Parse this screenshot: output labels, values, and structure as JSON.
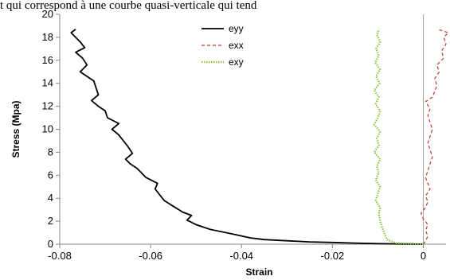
{
  "header_text": "t qui correspond à une courbe quasi-verticale qui tend",
  "chart_data": {
    "type": "line",
    "title": "",
    "xlabel": "Strain",
    "ylabel": "Stress (Mpa)",
    "xlim": [
      -0.08,
      0.005
    ],
    "ylim": [
      0,
      20
    ],
    "xticks": [
      -0.08,
      -0.06,
      -0.04,
      -0.02,
      0
    ],
    "xtick_labels": [
      "-0.08",
      "-0.06",
      "-0.04",
      "-0.02",
      "0"
    ],
    "yticks": [
      0,
      2,
      4,
      6,
      8,
      10,
      12,
      14,
      16,
      18,
      20
    ],
    "ytick_labels": [
      "0",
      "2",
      "4",
      "6",
      "8",
      "10",
      "12",
      "14",
      "16",
      "18",
      "20"
    ],
    "grid": false,
    "legend_position": "top-center",
    "series": [
      {
        "name": "eyy",
        "color": "#000000",
        "dash": "solid",
        "points": [
          [
            0.0,
            0.0
          ],
          [
            -0.005,
            0.02
          ],
          [
            -0.01,
            0.05
          ],
          [
            -0.015,
            0.1
          ],
          [
            -0.02,
            0.15
          ],
          [
            -0.025,
            0.2
          ],
          [
            -0.03,
            0.3
          ],
          [
            -0.035,
            0.4
          ],
          [
            -0.038,
            0.55
          ],
          [
            -0.041,
            0.8
          ],
          [
            -0.044,
            1.05
          ],
          [
            -0.047,
            1.3
          ],
          [
            -0.05,
            1.7
          ],
          [
            -0.052,
            2.1
          ],
          [
            -0.051,
            2.5
          ],
          [
            -0.053,
            2.8
          ],
          [
            -0.055,
            3.3
          ],
          [
            -0.057,
            3.8
          ],
          [
            -0.058,
            4.3
          ],
          [
            -0.059,
            4.8
          ],
          [
            -0.0585,
            5.3
          ],
          [
            -0.061,
            5.8
          ],
          [
            -0.062,
            6.2
          ],
          [
            -0.063,
            6.6
          ],
          [
            -0.0645,
            7.0
          ],
          [
            -0.0655,
            7.4
          ],
          [
            -0.064,
            7.9
          ],
          [
            -0.065,
            8.5
          ],
          [
            -0.066,
            9.0
          ],
          [
            -0.067,
            9.5
          ],
          [
            -0.0685,
            10.0
          ],
          [
            -0.067,
            10.5
          ],
          [
            -0.0695,
            11.0
          ],
          [
            -0.07,
            11.6
          ],
          [
            -0.0715,
            12.0
          ],
          [
            -0.073,
            12.5
          ],
          [
            -0.0715,
            13.0
          ],
          [
            -0.072,
            13.6
          ],
          [
            -0.0725,
            14.2
          ],
          [
            -0.074,
            14.6
          ],
          [
            -0.0755,
            15.0
          ],
          [
            -0.074,
            15.6
          ],
          [
            -0.075,
            16.2
          ],
          [
            -0.0765,
            16.7
          ],
          [
            -0.0745,
            17.1
          ],
          [
            -0.0755,
            17.6
          ],
          [
            -0.0765,
            18.0
          ],
          [
            -0.0775,
            18.4
          ],
          [
            -0.0765,
            18.7
          ]
        ]
      },
      {
        "name": "exx",
        "color": "#c0392b",
        "dash": "dashed",
        "points": [
          [
            0.0,
            0.0
          ],
          [
            0.0005,
            0.3
          ],
          [
            0.001,
            0.7
          ],
          [
            0.0005,
            1.2
          ],
          [
            0.001,
            1.7
          ],
          [
            0.0,
            2.2
          ],
          [
            -0.0005,
            2.7
          ],
          [
            0.0005,
            3.2
          ],
          [
            0.001,
            3.7
          ],
          [
            0.0005,
            4.2
          ],
          [
            0.0015,
            4.8
          ],
          [
            0.001,
            5.3
          ],
          [
            0.0005,
            5.8
          ],
          [
            0.001,
            6.4
          ],
          [
            0.0015,
            7.0
          ],
          [
            0.002,
            7.6
          ],
          [
            0.0015,
            8.2
          ],
          [
            0.001,
            8.8
          ],
          [
            0.0015,
            9.4
          ],
          [
            0.002,
            10.0
          ],
          [
            0.0015,
            10.6
          ],
          [
            0.001,
            11.2
          ],
          [
            0.0015,
            11.8
          ],
          [
            0.0005,
            12.4
          ],
          [
            0.002,
            12.8
          ],
          [
            0.0025,
            13.3
          ],
          [
            0.003,
            13.8
          ],
          [
            0.0025,
            14.4
          ],
          [
            0.0035,
            15.0
          ],
          [
            0.003,
            15.6
          ],
          [
            0.0045,
            16.2
          ],
          [
            0.004,
            16.8
          ],
          [
            0.005,
            17.4
          ],
          [
            0.0045,
            18.0
          ],
          [
            0.0055,
            18.4
          ],
          [
            0.004,
            18.6
          ],
          [
            0.003,
            18.7
          ]
        ]
      },
      {
        "name": "exy",
        "color": "#8cc63f",
        "dash": "dotted",
        "points": [
          [
            0.0,
            0.0
          ],
          [
            -0.003,
            0.05
          ],
          [
            -0.006,
            0.1
          ],
          [
            -0.008,
            0.4
          ],
          [
            -0.0085,
            0.9
          ],
          [
            -0.009,
            1.4
          ],
          [
            -0.0095,
            2.0
          ],
          [
            -0.0098,
            2.6
          ],
          [
            -0.0095,
            3.2
          ],
          [
            -0.0105,
            3.8
          ],
          [
            -0.01,
            4.4
          ],
          [
            -0.0095,
            5.0
          ],
          [
            -0.0105,
            5.6
          ],
          [
            -0.0098,
            6.2
          ],
          [
            -0.0102,
            6.8
          ],
          [
            -0.0095,
            7.4
          ],
          [
            -0.0108,
            8.0
          ],
          [
            -0.0098,
            8.6
          ],
          [
            -0.0102,
            9.2
          ],
          [
            -0.0095,
            9.8
          ],
          [
            -0.0108,
            10.4
          ],
          [
            -0.01,
            11.0
          ],
          [
            -0.0095,
            11.6
          ],
          [
            -0.0105,
            12.2
          ],
          [
            -0.0098,
            12.8
          ],
          [
            -0.0108,
            13.4
          ],
          [
            -0.0096,
            14.0
          ],
          [
            -0.0104,
            14.6
          ],
          [
            -0.0095,
            15.2
          ],
          [
            -0.0106,
            15.8
          ],
          [
            -0.0098,
            16.4
          ],
          [
            -0.0104,
            17.0
          ],
          [
            -0.0095,
            17.6
          ],
          [
            -0.0102,
            18.2
          ],
          [
            -0.0097,
            18.7
          ]
        ]
      }
    ]
  }
}
